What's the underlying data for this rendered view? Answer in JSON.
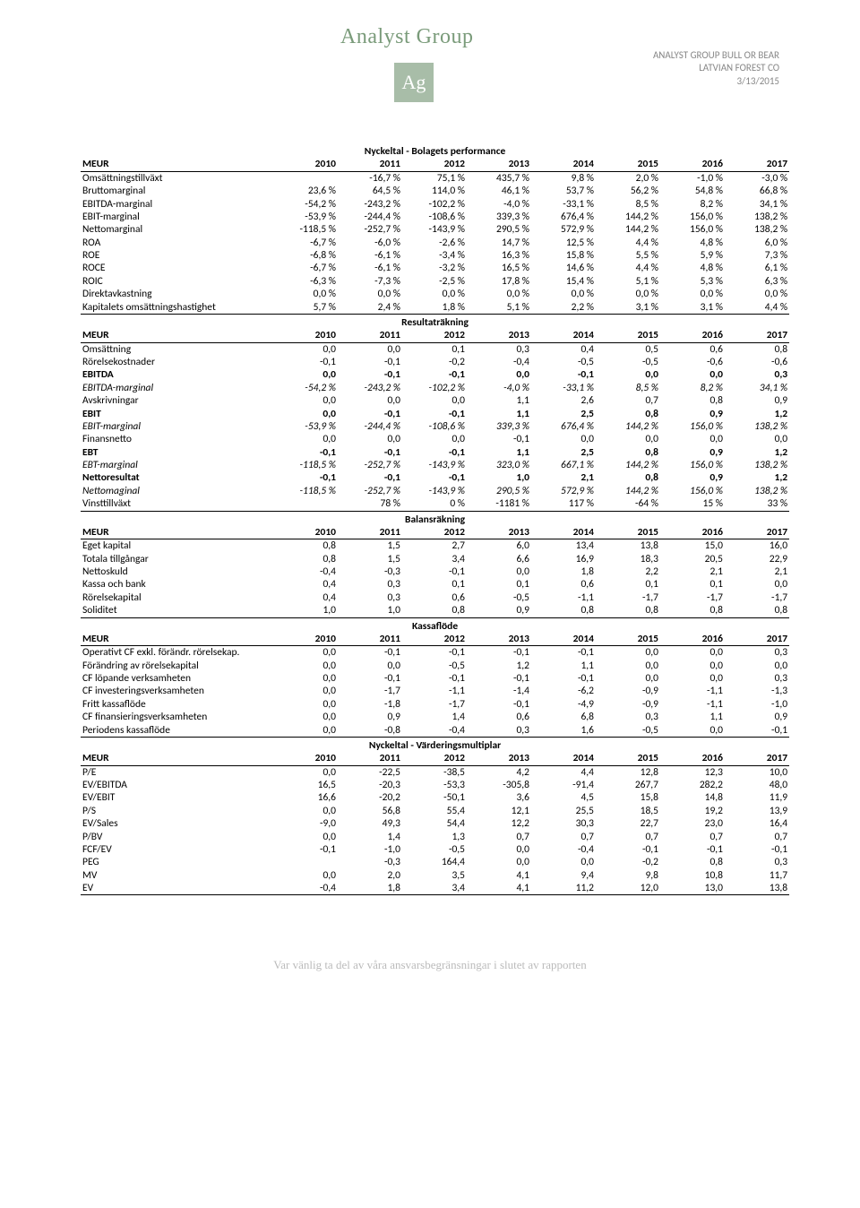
{
  "header": {
    "logo_text": "Analyst Group",
    "logo_box": "Ag",
    "right1": "ANALYST GROUP BULL OR BEAR",
    "right2": "LATVIAN FOREST CO",
    "right3": "3/13/2015"
  },
  "footer": "Var vänlig ta del av våra ansvarsbegränsningar i slutet av rapporten",
  "col_years": [
    "2010",
    "2011",
    "2012",
    "2013",
    "2014",
    "2015",
    "2016",
    "2017"
  ],
  "col_label_meur": "MEUR",
  "sections": [
    {
      "title": "Nyckeltal - Bolagets performance",
      "rows": [
        {
          "label": "Omsättningstillväxt",
          "cells": [
            "",
            "-16,7 %",
            "75,1 %",
            "435,7 %",
            "9,8 %",
            "2,0 %",
            "-1,0 %",
            "-3,0 %"
          ]
        },
        {
          "label": "Bruttomarginal",
          "cells": [
            "23,6 %",
            "64,5 %",
            "114,0 %",
            "46,1 %",
            "53,7 %",
            "56,2 %",
            "54,8 %",
            "66,8 %"
          ]
        },
        {
          "label": "EBITDA-marginal",
          "cells": [
            "-54,2 %",
            "-243,2 %",
            "-102,2 %",
            "-4,0 %",
            "-33,1 %",
            "8,5 %",
            "8,2 %",
            "34,1 %"
          ]
        },
        {
          "label": "EBIT-marginal",
          "cells": [
            "-53,9 %",
            "-244,4 %",
            "-108,6 %",
            "339,3 %",
            "676,4 %",
            "144,2 %",
            "156,0 %",
            "138,2 %"
          ]
        },
        {
          "label": "Nettomarginal",
          "cells": [
            "-118,5 %",
            "-252,7 %",
            "-143,9 %",
            "290,5 %",
            "572,9 %",
            "144,2 %",
            "156,0 %",
            "138,2 %"
          ]
        },
        {
          "label": "ROA",
          "cells": [
            "-6,7 %",
            "-6,0 %",
            "-2,6 %",
            "14,7 %",
            "12,5 %",
            "4,4 %",
            "4,8 %",
            "6,0 %"
          ]
        },
        {
          "label": "ROE",
          "cells": [
            "-6,8 %",
            "-6,1 %",
            "-3,4 %",
            "16,3 %",
            "15,8 %",
            "5,5 %",
            "5,9 %",
            "7,3 %"
          ]
        },
        {
          "label": "ROCE",
          "cells": [
            "-6,7 %",
            "-6,1 %",
            "-3,2 %",
            "16,5 %",
            "14,6 %",
            "4,4 %",
            "4,8 %",
            "6,1 %"
          ]
        },
        {
          "label": "ROIC",
          "cells": [
            "-6,3 %",
            "-7,3 %",
            "-2,5 %",
            "17,8 %",
            "15,4 %",
            "5,1 %",
            "5,3 %",
            "6,3 %"
          ]
        },
        {
          "label": "Direktavkastning",
          "cells": [
            "0,0 %",
            "0,0 %",
            "0,0 %",
            "0,0 %",
            "0,0 %",
            "0,0 %",
            "0,0 %",
            "0,0 %"
          ]
        },
        {
          "label": "Kapitalets omsättningshastighet",
          "cells": [
            "5,7 %",
            "2,4 %",
            "1,8 %",
            "5,1 %",
            "2,2 %",
            "3,1 %",
            "3,1 %",
            "4,4 %"
          ],
          "last": true
        }
      ]
    },
    {
      "title": "Resultaträkning",
      "rows": [
        {
          "label": "Omsättning",
          "cells": [
            "0,0",
            "0,0",
            "0,1",
            "0,3",
            "0,4",
            "0,5",
            "0,6",
            "0,8"
          ]
        },
        {
          "label": "Rörelsekostnader",
          "cells": [
            "-0,1",
            "-0,1",
            "-0,2",
            "-0,4",
            "-0,5",
            "-0,5",
            "-0,6",
            "-0,6"
          ]
        },
        {
          "label": "EBITDA",
          "cells": [
            "0,0",
            "-0,1",
            "-0,1",
            "0,0",
            "-0,1",
            "0,0",
            "0,0",
            "0,3"
          ],
          "bold": true
        },
        {
          "label": "EBITDA-marginal",
          "cells": [
            "-54,2 %",
            "-243,2 %",
            "-102,2 %",
            "-4,0 %",
            "-33,1 %",
            "8,5 %",
            "8,2 %",
            "34,1 %"
          ],
          "italic": true
        },
        {
          "label": "Avskrivningar",
          "cells": [
            "0,0",
            "0,0",
            "0,0",
            "1,1",
            "2,6",
            "0,7",
            "0,8",
            "0,9"
          ]
        },
        {
          "label": "EBIT",
          "cells": [
            "0,0",
            "-0,1",
            "-0,1",
            "1,1",
            "2,5",
            "0,8",
            "0,9",
            "1,2"
          ],
          "bold": true
        },
        {
          "label": "EBIT-marginal",
          "cells": [
            "-53,9 %",
            "-244,4 %",
            "-108,6 %",
            "339,3 %",
            "676,4 %",
            "144,2 %",
            "156,0 %",
            "138,2 %"
          ],
          "italic": true
        },
        {
          "label": "Finansnetto",
          "cells": [
            "0,0",
            "0,0",
            "0,0",
            "-0,1",
            "0,0",
            "0,0",
            "0,0",
            "0,0"
          ]
        },
        {
          "label": "EBT",
          "cells": [
            "-0,1",
            "-0,1",
            "-0,1",
            "1,1",
            "2,5",
            "0,8",
            "0,9",
            "1,2"
          ],
          "bold": true
        },
        {
          "label": "EBT-marginal",
          "cells": [
            "-118,5 %",
            "-252,7 %",
            "-143,9 %",
            "323,0 %",
            "667,1 %",
            "144,2 %",
            "156,0 %",
            "138,2 %"
          ],
          "italic": true
        },
        {
          "label": "Nettoresultat",
          "cells": [
            "-0,1",
            "-0,1",
            "-0,1",
            "1,0",
            "2,1",
            "0,8",
            "0,9",
            "1,2"
          ],
          "bold": true
        },
        {
          "label": "Nettomaginal",
          "cells": [
            "-118,5 %",
            "-252,7 %",
            "-143,9 %",
            "290,5 %",
            "572,9 %",
            "144,2 %",
            "156,0 %",
            "138,2 %"
          ],
          "italic": true
        },
        {
          "label": "Vinsttillväxt",
          "cells": [
            "",
            "78 %",
            "0 %",
            "-1181 %",
            "117 %",
            "-64 %",
            "15 %",
            "33 %"
          ],
          "last": true
        }
      ]
    },
    {
      "title": "Balansräkning",
      "rows": [
        {
          "label": "Eget kapital",
          "cells": [
            "0,8",
            "1,5",
            "2,7",
            "6,0",
            "13,4",
            "13,8",
            "15,0",
            "16,0"
          ]
        },
        {
          "label": "Totala tillgångar",
          "cells": [
            "0,8",
            "1,5",
            "3,4",
            "6,6",
            "16,9",
            "18,3",
            "20,5",
            "22,9"
          ]
        },
        {
          "label": "Nettoskuld",
          "cells": [
            "-0,4",
            "-0,3",
            "-0,1",
            "0,0",
            "1,8",
            "2,2",
            "2,1",
            "2,1"
          ]
        },
        {
          "label": "Kassa och bank",
          "cells": [
            "0,4",
            "0,3",
            "0,1",
            "0,1",
            "0,6",
            "0,1",
            "0,1",
            "0,0"
          ]
        },
        {
          "label": "Rörelsekapital",
          "cells": [
            "0,4",
            "0,3",
            "0,6",
            "-0,5",
            "-1,1",
            "-1,7",
            "-1,7",
            "-1,7"
          ]
        },
        {
          "label": "Soliditet",
          "cells": [
            "1,0",
            "1,0",
            "0,8",
            "0,9",
            "0,8",
            "0,8",
            "0,8",
            "0,8"
          ],
          "last": true
        }
      ]
    },
    {
      "title": "Kassaflöde",
      "rows": [
        {
          "label": "Operativt CF exkl. förändr. rörelsekap.",
          "cells": [
            "0,0",
            "-0,1",
            "-0,1",
            "-0,1",
            "-0,1",
            "0,0",
            "0,0",
            "0,3"
          ]
        },
        {
          "label": "Förändring av rörelsekapital",
          "cells": [
            "0,0",
            "0,0",
            "-0,5",
            "1,2",
            "1,1",
            "0,0",
            "0,0",
            "0,0"
          ]
        },
        {
          "label": "CF löpande verksamheten",
          "cells": [
            "0,0",
            "-0,1",
            "-0,1",
            "-0,1",
            "-0,1",
            "0,0",
            "0,0",
            "0,3"
          ]
        },
        {
          "label": "CF investeringsverksamheten",
          "cells": [
            "0,0",
            "-1,7",
            "-1,1",
            "-1,4",
            "-6,2",
            "-0,9",
            "-1,1",
            "-1,3"
          ]
        },
        {
          "label": "Fritt kassaflöde",
          "cells": [
            "0,0",
            "-1,8",
            "-1,7",
            "-0,1",
            "-4,9",
            "-0,9",
            "-1,1",
            "-1,0"
          ]
        },
        {
          "label": "CF finansieringsverksamheten",
          "cells": [
            "0,0",
            "0,9",
            "1,4",
            "0,6",
            "6,8",
            "0,3",
            "1,1",
            "0,9"
          ]
        },
        {
          "label": "Periodens kassaflöde",
          "cells": [
            "0,0",
            "-0,8",
            "-0,4",
            "0,3",
            "1,6",
            "-0,5",
            "0,0",
            "-0,1"
          ],
          "last": true
        }
      ]
    },
    {
      "title": "Nyckeltal - Värderingsmultiplar",
      "rows": [
        {
          "label": "P/E",
          "cells": [
            "0,0",
            "-22,5",
            "-38,5",
            "4,2",
            "4,4",
            "12,8",
            "12,3",
            "10,0"
          ]
        },
        {
          "label": "EV/EBITDA",
          "cells": [
            "16,5",
            "-20,3",
            "-53,3",
            "-305,8",
            "-91,4",
            "267,7",
            "282,2",
            "48,0"
          ]
        },
        {
          "label": "EV/EBIT",
          "cells": [
            "16,6",
            "-20,2",
            "-50,1",
            "3,6",
            "4,5",
            "15,8",
            "14,8",
            "11,9"
          ]
        },
        {
          "label": "P/S",
          "cells": [
            "0,0",
            "56,8",
            "55,4",
            "12,1",
            "25,5",
            "18,5",
            "19,2",
            "13,9"
          ]
        },
        {
          "label": "EV/Sales",
          "cells": [
            "-9,0",
            "49,3",
            "54,4",
            "12,2",
            "30,3",
            "22,7",
            "23,0",
            "16,4"
          ]
        },
        {
          "label": "P/BV",
          "cells": [
            "0,0",
            "1,4",
            "1,3",
            "0,7",
            "0,7",
            "0,7",
            "0,7",
            "0,7"
          ]
        },
        {
          "label": "FCF/EV",
          "cells": [
            "-0,1",
            "-1,0",
            "-0,5",
            "0,0",
            "-0,4",
            "-0,1",
            "-0,1",
            "-0,1"
          ]
        },
        {
          "label": "PEG",
          "cells": [
            "",
            "-0,3",
            "164,4",
            "0,0",
            "0,0",
            "-0,2",
            "0,8",
            "0,3"
          ]
        },
        {
          "label": "MV",
          "cells": [
            "0,0",
            "2,0",
            "3,5",
            "4,1",
            "9,4",
            "9,8",
            "10,8",
            "11,7"
          ]
        },
        {
          "label": "EV",
          "cells": [
            "-0,4",
            "1,8",
            "3,4",
            "4,1",
            "11,2",
            "12,0",
            "13,0",
            "13,8"
          ],
          "last": true
        }
      ]
    }
  ]
}
